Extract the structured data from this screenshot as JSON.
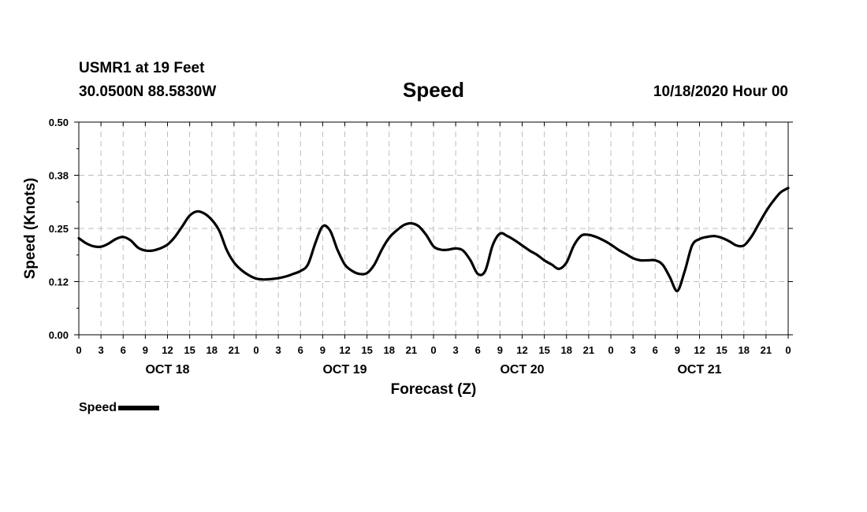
{
  "header": {
    "station": "USMR1 at 19 Feet",
    "coords": "30.0500N 88.5830W",
    "datetime": "10/18/2020 Hour 00"
  },
  "colors": {
    "series": "#000000",
    "grid": "#bdbdbd",
    "axis": "#000000"
  },
  "chart_data": {
    "type": "line",
    "title": "Speed",
    "xlabel": "Forecast (Z)",
    "ylabel": "Speed (Knots)",
    "xlim": [
      0,
      96
    ],
    "ylim": [
      0.0,
      0.5
    ],
    "yticks": [
      0.0,
      0.125,
      0.25,
      0.375,
      0.5
    ],
    "ytick_labels": [
      "0.00",
      "0.12",
      "0.25",
      "0.38",
      "0.50"
    ],
    "xticks": [
      0,
      3,
      6,
      9,
      12,
      15,
      18,
      21,
      24,
      27,
      30,
      33,
      36,
      39,
      42,
      45,
      48,
      51,
      54,
      57,
      60,
      63,
      66,
      69,
      72,
      75,
      78,
      81,
      84,
      87,
      90,
      93,
      96
    ],
    "xtick_labels": [
      "0",
      "3",
      "6",
      "9",
      "12",
      "15",
      "18",
      "21",
      "0",
      "3",
      "6",
      "9",
      "12",
      "15",
      "18",
      "21",
      "0",
      "3",
      "6",
      "9",
      "12",
      "15",
      "18",
      "21",
      "0",
      "3",
      "6",
      "9",
      "12",
      "15",
      "18",
      "21",
      "0"
    ],
    "day_labels": [
      {
        "label": "OCT 18",
        "hour": 12
      },
      {
        "label": "OCT 19",
        "hour": 36
      },
      {
        "label": "OCT 20",
        "hour": 60
      },
      {
        "label": "OCT 21",
        "hour": 84
      }
    ],
    "grid": true,
    "legend": "bottom-left",
    "series": [
      {
        "name": "Speed",
        "x": [
          0,
          1,
          2,
          3,
          4,
          5,
          6,
          7,
          8,
          9,
          10,
          11,
          12,
          13,
          14,
          15,
          16,
          17,
          18,
          19,
          20,
          21,
          22,
          23,
          24,
          25,
          26,
          27,
          28,
          29,
          30,
          31,
          32,
          33,
          34,
          35,
          36,
          37,
          38,
          39,
          40,
          41,
          42,
          43,
          44,
          45,
          46,
          47,
          48,
          49,
          50,
          51,
          52,
          53,
          54,
          55,
          56,
          57,
          58,
          59,
          60,
          61,
          62,
          63,
          64,
          65,
          66,
          67,
          68,
          69,
          70,
          71,
          72,
          73,
          74,
          75,
          76,
          77,
          78,
          79,
          80,
          81,
          82,
          83,
          84,
          85,
          86,
          87,
          88,
          89,
          90,
          91,
          92,
          93,
          94,
          95,
          96
        ],
        "values": [
          0.227,
          0.215,
          0.208,
          0.207,
          0.214,
          0.225,
          0.23,
          0.222,
          0.205,
          0.198,
          0.198,
          0.203,
          0.212,
          0.23,
          0.255,
          0.28,
          0.29,
          0.285,
          0.27,
          0.245,
          0.2,
          0.17,
          0.152,
          0.14,
          0.132,
          0.13,
          0.131,
          0.133,
          0.137,
          0.143,
          0.15,
          0.165,
          0.215,
          0.255,
          0.245,
          0.2,
          0.165,
          0.15,
          0.143,
          0.145,
          0.165,
          0.2,
          0.228,
          0.245,
          0.258,
          0.262,
          0.255,
          0.235,
          0.208,
          0.2,
          0.2,
          0.203,
          0.198,
          0.175,
          0.143,
          0.15,
          0.21,
          0.238,
          0.232,
          0.222,
          0.21,
          0.198,
          0.188,
          0.175,
          0.165,
          0.155,
          0.17,
          0.21,
          0.233,
          0.235,
          0.23,
          0.222,
          0.212,
          0.2,
          0.19,
          0.18,
          0.175,
          0.175,
          0.175,
          0.165,
          0.135,
          0.103,
          0.15,
          0.21,
          0.225,
          0.23,
          0.232,
          0.228,
          0.22,
          0.21,
          0.21,
          0.23,
          0.26,
          0.29,
          0.315,
          0.335,
          0.345
        ]
      }
    ]
  },
  "legend": {
    "label": "Speed"
  }
}
